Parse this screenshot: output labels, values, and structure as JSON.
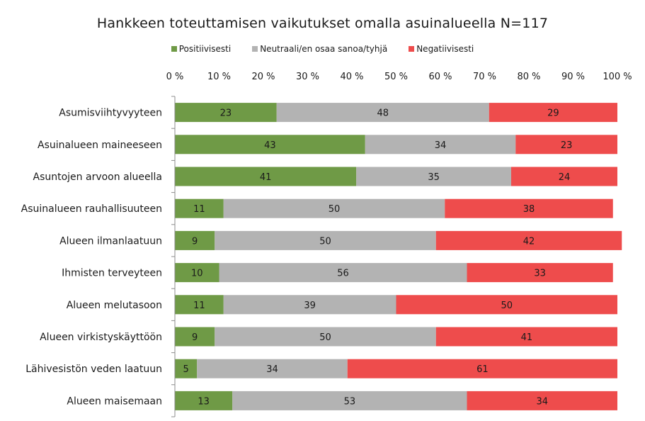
{
  "chart_data": {
    "type": "bar",
    "orientation": "horizontal",
    "stacked": true,
    "title": "Hankkeen toteuttamisen vaikutukset omalla asuinalueella N=117",
    "xlabel": "",
    "ylabel": "",
    "xlim": [
      0,
      100
    ],
    "xticks": [
      "0 %",
      "10 %",
      "20 %",
      "30 %",
      "40 %",
      "50 %",
      "60 %",
      "70 %",
      "80 %",
      "90 %",
      "100 %"
    ],
    "legend_position": "top",
    "grid": false,
    "categories": [
      "Asumisviihtyvyyteen",
      "Asuinalueen maineeseen",
      "Asuntojen arvoon alueella",
      "Asuinalueen rauhallisuuteen",
      "Alueen ilmanlaatuun",
      "Ihmisten terveyteen",
      "Alueen melutasoon",
      "Alueen virkistyskäyttöön",
      "Lähivesistön veden laatuun",
      "Alueen maisemaan"
    ],
    "series": [
      {
        "name": "Positiivisesti",
        "color": "#6f9a46",
        "values": [
          23,
          43,
          41,
          11,
          9,
          10,
          11,
          9,
          5,
          13
        ]
      },
      {
        "name": "Neutraali/en osaa sanoa/tyhjä",
        "color": "#b3b3b3",
        "values": [
          48,
          34,
          35,
          50,
          50,
          56,
          39,
          50,
          34,
          53
        ]
      },
      {
        "name": "Negatiivisesti",
        "color": "#ee4c4c",
        "values": [
          29,
          23,
          24,
          38,
          42,
          33,
          50,
          41,
          61,
          34
        ]
      }
    ]
  }
}
